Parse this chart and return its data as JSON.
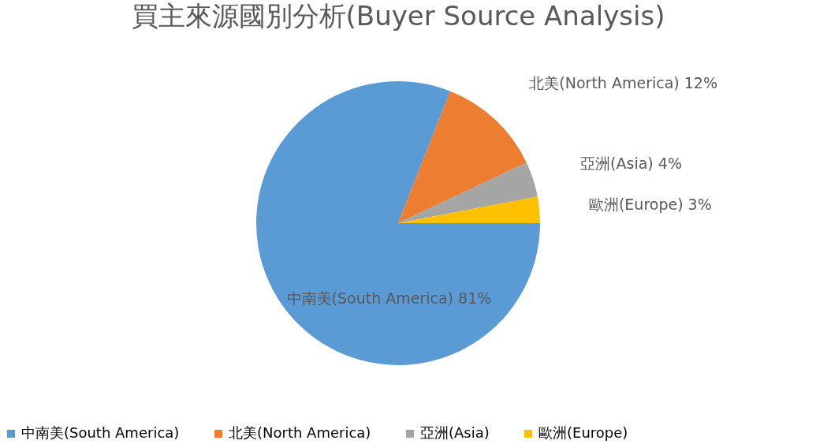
{
  "chart_data": {
    "type": "pie",
    "title": "買主來源國別分析(Buyer Source Analysis)",
    "categories": [
      "中南美(South America)",
      "北美(North America)",
      "亞洲(Asia)",
      "歐洲(Europe)"
    ],
    "values": [
      81,
      12,
      4,
      3
    ],
    "value_labels": [
      "81%",
      "12%",
      "4%",
      "3%"
    ],
    "colors": [
      "#5b9bd5",
      "#ed7d31",
      "#a5a5a5",
      "#ffc000"
    ],
    "legend": "bottom"
  }
}
